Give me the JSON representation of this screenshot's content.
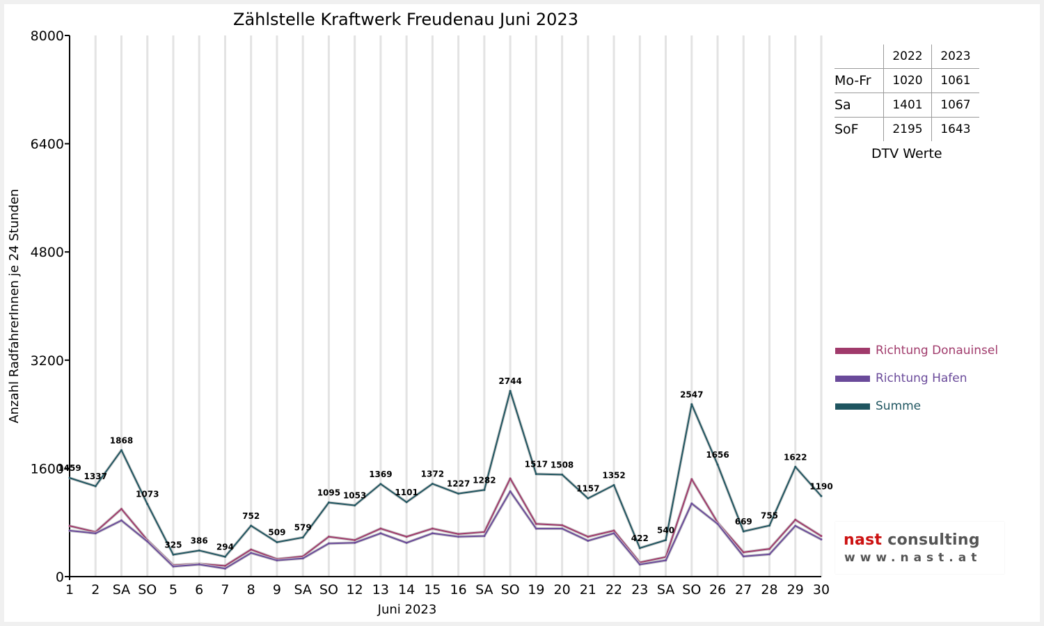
{
  "chart_data": {
    "type": "line",
    "title": "Zählstelle Kraftwerk Freudenau Juni 2023",
    "ylabel": "Anzahl RadfahrerInnen je 24 Stunden",
    "xlabel": "Juni 2023",
    "ylim": [
      0,
      8000
    ],
    "yticks": [
      "0",
      "1600",
      "3200",
      "4800",
      "6400",
      "8000"
    ],
    "grid": "vertical",
    "categories": [
      "1",
      "2",
      "SA",
      "SO",
      "5",
      "6",
      "7",
      "8",
      "9",
      "SA",
      "SO",
      "12",
      "13",
      "14",
      "15",
      "16",
      "SA",
      "SO",
      "19",
      "20",
      "21",
      "22",
      "23",
      "SA",
      "SO",
      "26",
      "27",
      "28",
      "29",
      "30"
    ],
    "category_colors": [
      "#000000",
      "#000000",
      "#000000",
      "#ff0000",
      "#000000",
      "#000000",
      "#000000",
      "#ff0000",
      "#000000",
      "#000000",
      "#ff0000",
      "#000000",
      "#000000",
      "#000000",
      "#000000",
      "#000000",
      "#000000",
      "#ff0000",
      "#000000",
      "#000000",
      "#000000",
      "#000000",
      "#000000",
      "#000000",
      "#ff0000",
      "#000000",
      "#000000",
      "#000000",
      "#000000",
      "#000000"
    ],
    "series": [
      {
        "name": "Richtung Donauinsel",
        "color": "#a03a6b",
        "values": [
          750,
          660,
          1000,
          540,
          170,
          190,
          160,
          400,
          260,
          300,
          590,
          540,
          710,
          590,
          710,
          630,
          660,
          1450,
          780,
          760,
          590,
          680,
          210,
          290,
          1440,
          800,
          360,
          410,
          840,
          600
        ]
      },
      {
        "name": "Richtung Hafen",
        "color": "#6a4a9a",
        "values": [
          680,
          640,
          830,
          520,
          150,
          180,
          120,
          350,
          240,
          270,
          490,
          500,
          640,
          500,
          640,
          590,
          600,
          1260,
          710,
          710,
          530,
          640,
          180,
          240,
          1080,
          780,
          300,
          330,
          750,
          550
        ]
      },
      {
        "name": "Summe",
        "color": "#1f5560",
        "values": [
          1459,
          1337,
          1868,
          1073,
          325,
          386,
          294,
          752,
          509,
          579,
          1095,
          1053,
          1369,
          1101,
          1372,
          1227,
          1282,
          2744,
          1517,
          1508,
          1157,
          1352,
          422,
          540,
          2547,
          1656,
          669,
          755,
          1622,
          1190
        ]
      }
    ],
    "data_labels": [
      "1459",
      "1337",
      "1868",
      "1073",
      "325",
      "386",
      "294",
      "752",
      "509",
      "579",
      "1095",
      "1053",
      "1369",
      "1101",
      "1372",
      "1227",
      "1282",
      "2744",
      "1517",
      "1508",
      "1157",
      "1352",
      "422",
      "540",
      "2547",
      "1656",
      "669",
      "755",
      "1622",
      "1190"
    ],
    "legend_position": "right"
  },
  "dtv_table": {
    "headers": [
      "",
      "2022",
      "2023"
    ],
    "rows": [
      {
        "label": "Mo-Fr",
        "v2022": "1020",
        "v2023": "1061"
      },
      {
        "label": "Sa",
        "v2022": "1401",
        "v2023": "1067"
      },
      {
        "label": "SoF",
        "v2022": "2195",
        "v2023": "1643"
      }
    ],
    "caption": "DTV Werte"
  },
  "logo": {
    "name_part1": "nast",
    "name_part2": "consulting",
    "url": "www.nast.at",
    "color1": "#cc1111",
    "color2": "#555555"
  }
}
